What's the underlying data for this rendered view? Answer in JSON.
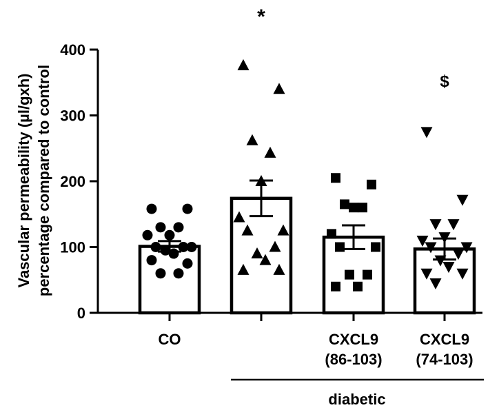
{
  "chart_data": {
    "type": "bar",
    "ylabel_line1": "Vascular permeability (µl/gxh)",
    "ylabel_line2": "percentage compared to control",
    "ylim": [
      0,
      400
    ],
    "yticks": [
      "0",
      "100",
      "200",
      "300",
      "400"
    ],
    "group_label": "diabetic",
    "categories": [
      {
        "line1": "CO",
        "line2": ""
      },
      {
        "line1": "",
        "line2": ""
      },
      {
        "line1": "CXCL9",
        "line2": "(86-103)"
      },
      {
        "line1": "CXCL9",
        "line2": "(74-103)"
      }
    ],
    "means": [
      101,
      174,
      115,
      97
    ],
    "sem": [
      8,
      27,
      18,
      16
    ],
    "annotations": [
      "",
      "*",
      "",
      "$"
    ],
    "markers": [
      "circle",
      "triangle-up",
      "square",
      "triangle-down"
    ],
    "points": [
      [
        158,
        158,
        130,
        130,
        118,
        118,
        100,
        100,
        100,
        95,
        90,
        80,
        75,
        60,
        60
      ],
      [
        376,
        340,
        262,
        243,
        200,
        145,
        125,
        125,
        100,
        90,
        80,
        65,
        65
      ],
      [
        205,
        195,
        165,
        160,
        160,
        120,
        100,
        100,
        58,
        58,
        40,
        40
      ],
      [
        275,
        172,
        135,
        135,
        115,
        110,
        100,
        100,
        90,
        80,
        70,
        60,
        60,
        45
      ]
    ]
  }
}
